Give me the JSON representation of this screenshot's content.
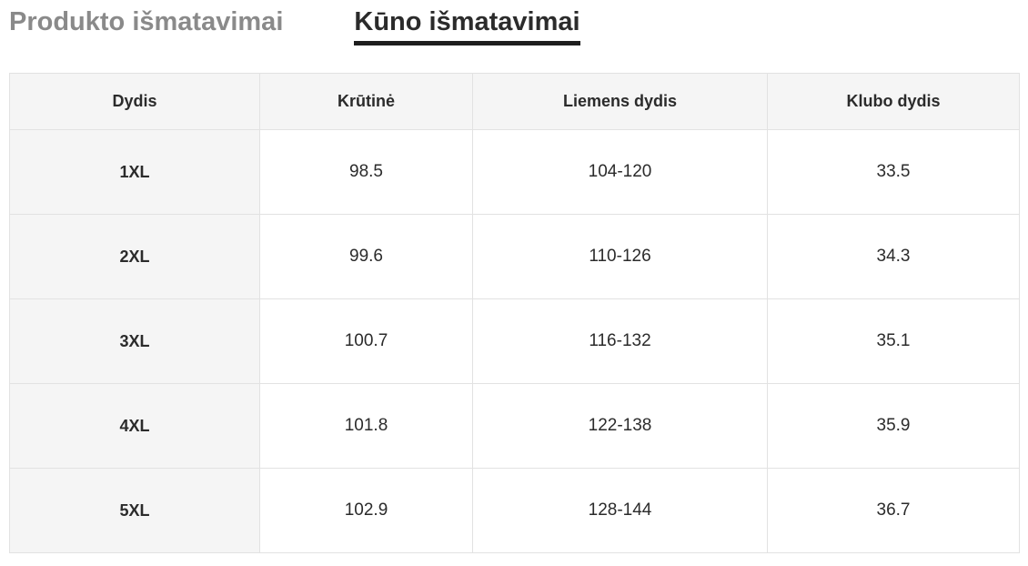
{
  "tabs": {
    "product": {
      "label": "Produkto išmatavimai",
      "active": false
    },
    "body": {
      "label": "Kūno išmatavimai",
      "active": true
    }
  },
  "table": {
    "headers": [
      "Dydis",
      "Krūtinė",
      "Liemens dydis",
      "Klubo dydis"
    ],
    "rows": [
      {
        "cells": [
          "1XL",
          "98.5",
          "104-120",
          "33.5"
        ]
      },
      {
        "cells": [
          "2XL",
          "99.6",
          "110-126",
          "34.3"
        ]
      },
      {
        "cells": [
          "3XL",
          "100.7",
          "116-132",
          "35.1"
        ]
      },
      {
        "cells": [
          "4XL",
          "101.8",
          "122-138",
          "35.9"
        ]
      },
      {
        "cells": [
          "5XL",
          "102.9",
          "128-144",
          "36.7"
        ]
      }
    ]
  },
  "colors": {
    "active_tab_text": "#2b2b2b",
    "inactive_tab_text": "#8a8a8a",
    "active_tab_underline": "#1e1e1e",
    "header_cell_background": "#f5f5f5",
    "cell_background": "#ffffff",
    "border": "#e2e2e2",
    "cell_text": "#2b2b2b"
  }
}
